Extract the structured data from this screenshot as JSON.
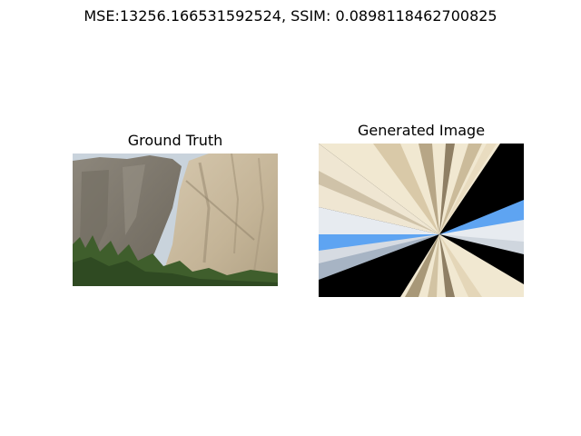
{
  "figure": {
    "suptitle": "MSE:13256.166531592524, SSIM: 0.0898118462700825"
  },
  "panels": [
    {
      "title": "Ground Truth",
      "content": "photo of granite cliffs with trees at the base"
    },
    {
      "title": "Generated Image",
      "content": "radial streak pattern"
    }
  ],
  "colors": {
    "background": "#ffffff",
    "sky": "#c9d3dc",
    "rock_light": "#cdbfa7",
    "rock_dark": "#7c7568",
    "tree_green": "#3f5e2c",
    "streak_cream": "#f1e8d1",
    "streak_tan": "#c8b99c",
    "streak_blue": "#5ea4f2",
    "streak_black": "#000000"
  }
}
